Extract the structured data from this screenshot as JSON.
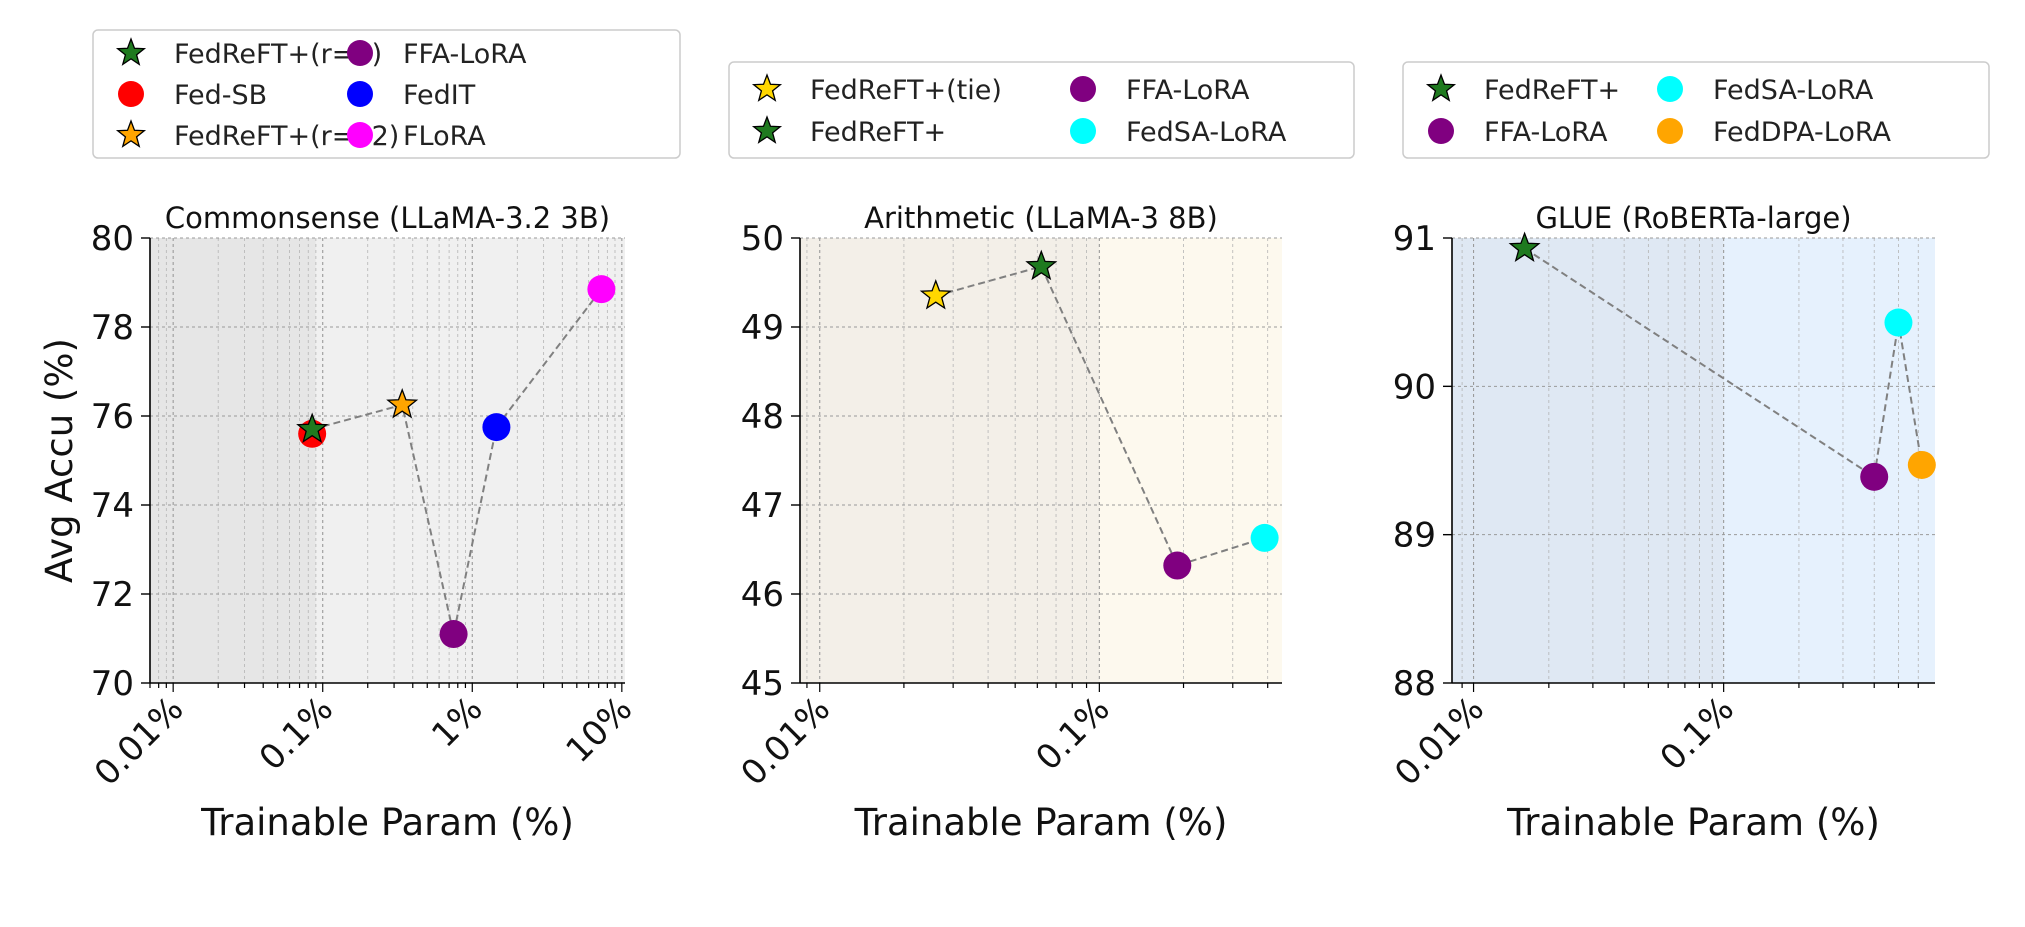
{
  "ylabel": "Avg Accu (%)",
  "chart_data": [
    {
      "type": "scatter",
      "title": "Commonsense (LLaMA-3.2 3B)",
      "xlabel": "Trainable Param (%)",
      "x_scale": "log",
      "xlim": [
        0.007,
        10.5
      ],
      "xticks": [
        0.01,
        0.1,
        1,
        10
      ],
      "xtick_labels": [
        "0.01%",
        "0.1%",
        "1%",
        "10%"
      ],
      "ylim": [
        70,
        80
      ],
      "yticks": [
        70,
        72,
        74,
        76,
        78,
        80
      ],
      "ytick_labels": [
        "70",
        "72",
        "74",
        "76",
        "78",
        "80"
      ],
      "shading": [
        {
          "from": 0.007,
          "to": 0.09,
          "color": "#e6e6e6"
        },
        {
          "from": 0.09,
          "to": 10.5,
          "color": "#f0f0f0"
        }
      ],
      "grid": true,
      "legend_position": "top",
      "legend_columns": 2,
      "series": [
        {
          "name": "FedReFT+(r=8)",
          "marker": "star",
          "color": "#1f7a1f",
          "x": 0.085,
          "y": 75.7
        },
        {
          "name": "Fed-SB",
          "marker": "circle",
          "color": "#ff0000",
          "x": 0.085,
          "y": 75.6
        },
        {
          "name": "FedReFT+(r=32)",
          "marker": "star",
          "color": "#ffa500",
          "x": 0.34,
          "y": 76.25
        },
        {
          "name": "FFA-LoRA",
          "marker": "circle",
          "color": "#800080",
          "x": 0.75,
          "y": 71.1
        },
        {
          "name": "FedIT",
          "marker": "circle",
          "color": "#0000ff",
          "x": 1.45,
          "y": 75.75
        },
        {
          "name": "FLoRA",
          "marker": "circle",
          "color": "#ff00ff",
          "x": 7.3,
          "y": 78.85
        }
      ],
      "line_order": [
        "FedReFT+(r=8)",
        "FedReFT+(r=32)",
        "FFA-LoRA",
        "FedIT",
        "FLoRA"
      ]
    },
    {
      "type": "scatter",
      "title": "Arithmetic (LLaMA-3 8B)",
      "xlabel": "Trainable Param (%)",
      "x_scale": "log",
      "xlim": [
        0.0085,
        0.45
      ],
      "xticks": [
        0.01,
        0.1
      ],
      "xtick_labels": [
        "0.01%",
        "0.1%"
      ],
      "ylim": [
        45,
        50
      ],
      "yticks": [
        45,
        46,
        47,
        48,
        49,
        50
      ],
      "ytick_labels": [
        "45",
        "46",
        "47",
        "48",
        "49",
        "50"
      ],
      "shading": [
        {
          "from": 0.0085,
          "to": 0.1,
          "color": "#f3efe8"
        },
        {
          "from": 0.1,
          "to": 0.45,
          "color": "#fdf9ee"
        }
      ],
      "grid": true,
      "legend_position": "top",
      "legend_columns": 2,
      "series": [
        {
          "name": "FedReFT+(tie)",
          "marker": "star",
          "color": "#ffd700",
          "x": 0.026,
          "y": 49.35
        },
        {
          "name": "FedReFT+",
          "marker": "star",
          "color": "#1f7a1f",
          "x": 0.062,
          "y": 49.68
        },
        {
          "name": "FFA-LoRA",
          "marker": "circle",
          "color": "#800080",
          "x": 0.19,
          "y": 46.32
        },
        {
          "name": "FedSA-LoRA",
          "marker": "circle",
          "color": "#00ffff",
          "x": 0.39,
          "y": 46.63
        }
      ],
      "line_order": [
        "FedReFT+(tie)",
        "FedReFT+",
        "FFA-LoRA",
        "FedSA-LoRA"
      ]
    },
    {
      "type": "scatter",
      "title": "GLUE (RoBERTa-large)",
      "xlabel": "Trainable Param (%)",
      "x_scale": "log",
      "xlim": [
        0.0082,
        0.7
      ],
      "xticks": [
        0.01,
        0.1
      ],
      "xtick_labels": [
        "0.01%",
        "0.1%"
      ],
      "ylim": [
        88,
        91
      ],
      "yticks": [
        88,
        89,
        90,
        91
      ],
      "ytick_labels": [
        "88",
        "89",
        "90",
        "91"
      ],
      "shading": [
        {
          "from": 0.0082,
          "to": 0.1,
          "color": "#dfe8f3"
        },
        {
          "from": 0.1,
          "to": 0.7,
          "color": "#e6f1fd"
        }
      ],
      "grid": true,
      "legend_position": "top",
      "legend_columns": 2,
      "series": [
        {
          "name": "FedReFT+",
          "marker": "star",
          "color": "#1f7a1f",
          "x": 0.016,
          "y": 90.93
        },
        {
          "name": "FFA-LoRA",
          "marker": "circle",
          "color": "#800080",
          "x": 0.4,
          "y": 89.39
        },
        {
          "name": "FedSA-LoRA",
          "marker": "circle",
          "color": "#00ffff",
          "x": 0.5,
          "y": 90.43
        },
        {
          "name": "FedDPA-LoRA",
          "marker": "circle",
          "color": "#ffa500",
          "x": 0.62,
          "y": 89.47
        }
      ],
      "line_order": [
        "FedReFT+",
        "FFA-LoRA",
        "FedSA-LoRA",
        "FedDPA-LoRA"
      ]
    }
  ]
}
